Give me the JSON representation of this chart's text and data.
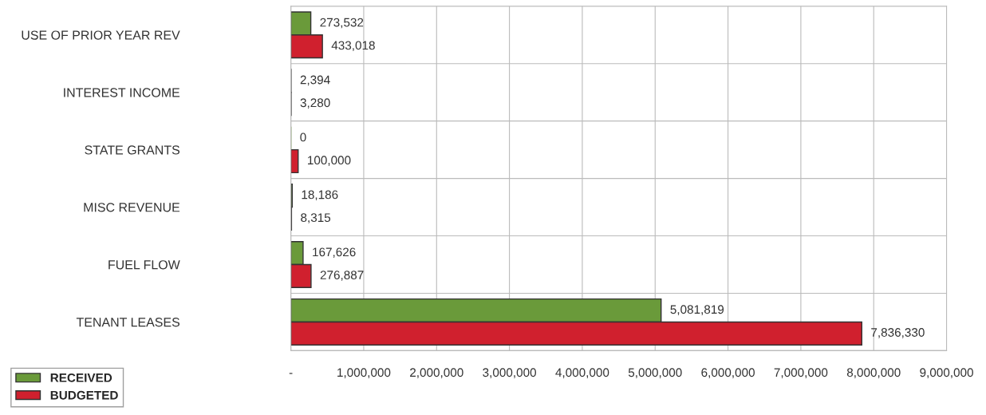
{
  "chart_data": {
    "type": "bar",
    "orientation": "horizontal",
    "categories": [
      "USE OF PRIOR YEAR REV",
      "INTEREST INCOME",
      "STATE GRANTS",
      "MISC REVENUE",
      "FUEL FLOW",
      "TENANT LEASES"
    ],
    "series": [
      {
        "name": "RECEIVED",
        "color": "#6a9a3a",
        "values": [
          273532,
          2394,
          0,
          18186,
          167626,
          5081819
        ],
        "value_labels": [
          "273,532",
          "2,394",
          "0",
          "18,186",
          "167,626",
          "5,081,819"
        ]
      },
      {
        "name": "BUDGETED",
        "color": "#d0202e",
        "values": [
          433018,
          3280,
          100000,
          8315,
          276887,
          7836330
        ],
        "value_labels": [
          "433,018",
          "3,280",
          "100,000",
          "8,315",
          "276,887",
          "7,836,330"
        ]
      }
    ],
    "xlim": [
      0,
      9000000
    ],
    "xticks": [
      {
        "value": 0,
        "label": "-"
      },
      {
        "value": 1000000,
        "label": "1,000,000"
      },
      {
        "value": 2000000,
        "label": "2,000,000"
      },
      {
        "value": 3000000,
        "label": "3,000,000"
      },
      {
        "value": 4000000,
        "label": "4,000,000"
      },
      {
        "value": 5000000,
        "label": "5,000,000"
      },
      {
        "value": 6000000,
        "label": "6,000,000"
      },
      {
        "value": 7000000,
        "label": "7,000,000"
      },
      {
        "value": 8000000,
        "label": "8,000,000"
      },
      {
        "value": 9000000,
        "label": "9,000,000"
      }
    ],
    "grid": "x",
    "legend": "bottom left"
  }
}
